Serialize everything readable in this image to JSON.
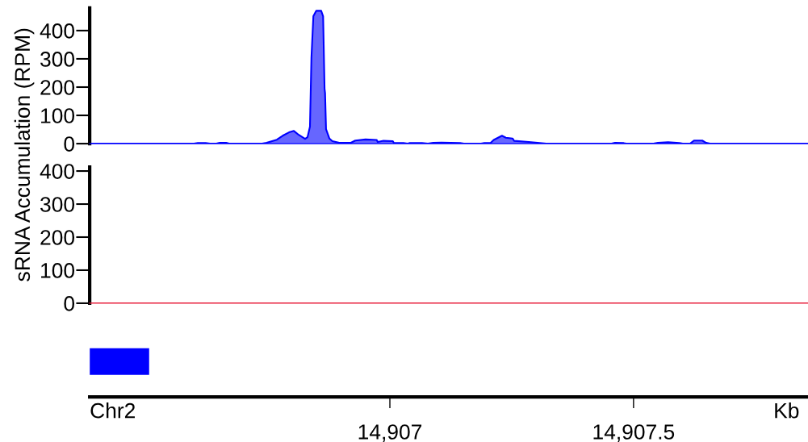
{
  "chart_data": [
    {
      "type": "area",
      "ylabel": "sRNA Accumulation (RPM)",
      "xlim": [
        14906.384,
        14907.858
      ],
      "ylim": [
        0,
        480
      ],
      "yticks": [
        0,
        100,
        200,
        300,
        400
      ],
      "tick_labels": "y",
      "grid": false,
      "series": [
        {
          "color": "#0000ff",
          "x": [
            14906.384,
            14906.598,
            14906.606,
            14906.622,
            14906.631,
            14906.644,
            14906.651,
            14906.664,
            14906.67,
            14906.738,
            14906.747,
            14906.768,
            14906.78,
            14906.793,
            14906.803,
            14906.813,
            14906.826,
            14906.831,
            14906.836,
            14906.839,
            14906.843,
            14906.849,
            14906.859,
            14906.863,
            14906.866,
            14906.867,
            14906.869,
            14906.876,
            14906.882,
            14906.896,
            14906.92,
            14906.929,
            14906.95,
            14906.973,
            14906.975,
            14906.987,
            14907.006,
            14907.008,
            14907.028,
            14907.036,
            14907.04,
            14907.066,
            14907.078,
            14907.089,
            14907.106,
            14907.144,
            14907.152,
            14907.187,
            14907.194,
            14907.207,
            14907.213,
            14907.23,
            14907.238,
            14907.252,
            14907.255,
            14907.285,
            14907.321,
            14907.455,
            14907.462,
            14907.48,
            14907.485,
            14907.541,
            14907.55,
            14907.571,
            14907.594,
            14907.601,
            14907.616,
            14907.624,
            14907.641,
            14907.649,
            14907.657,
            14907.858
          ],
          "values": [
            0,
            0,
            2,
            2,
            0,
            0,
            3,
            3,
            0,
            0,
            3,
            14,
            28,
            40,
            45,
            31,
            17,
            23,
            60,
            304,
            451,
            470,
            470,
            451,
            194,
            180,
            51,
            18,
            9,
            3,
            3,
            11,
            15,
            13,
            6,
            10,
            9,
            3,
            2,
            0,
            2,
            2,
            0,
            3,
            4,
            2,
            0,
            0,
            2,
            3,
            13,
            28,
            21,
            18,
            10,
            6,
            0,
            0,
            3,
            2,
            0,
            0,
            3,
            5,
            2,
            0,
            0,
            11,
            11,
            3,
            0,
            0
          ]
        }
      ]
    },
    {
      "type": "area",
      "xlim": [
        14906.384,
        14907.858
      ],
      "ylim": [
        0,
        412
      ],
      "yticks": [
        0,
        100,
        200,
        300,
        400
      ],
      "tick_labels": "y",
      "grid": false,
      "series": [
        {
          "type": "line",
          "color": "#e8223f",
          "x": [
            14906.384,
            14907.0,
            14907.5,
            14907.858
          ],
          "values": [
            0,
            0,
            0,
            0
          ]
        }
      ]
    },
    {
      "type": "bar",
      "orientation": "horizontal",
      "xlabel": "Kb",
      "annotations": [
        "Chr2"
      ],
      "xlim": [
        14906.384,
        14907.858
      ],
      "xticks": [
        {
          "value": 14907,
          "label": "14,907"
        },
        {
          "value": 14907.5,
          "label": "14,907.5"
        }
      ],
      "tick_labels": "x",
      "categories": [
        null
      ],
      "base": [
        14906.384
      ],
      "values": [
        0.122
      ],
      "colors": [
        "#0000ff"
      ]
    }
  ]
}
